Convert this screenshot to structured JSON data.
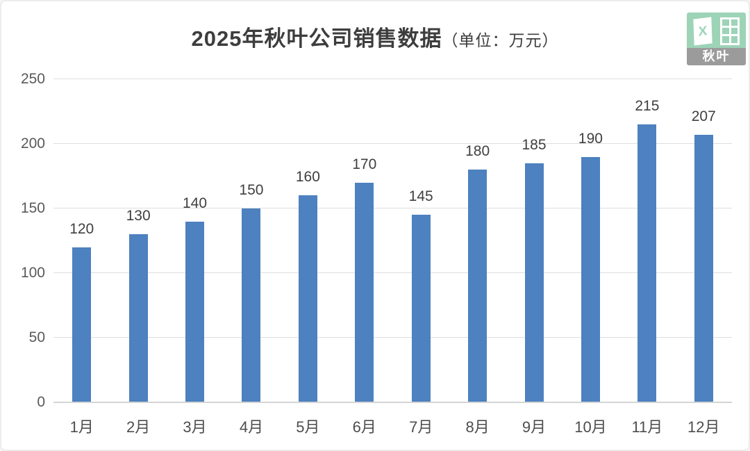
{
  "title": {
    "main": "2025年秋叶公司销售数据",
    "unit": "（单位：万元）"
  },
  "logo": {
    "brand": "秋叶",
    "icon": "excel-icon",
    "x_glyph": "X",
    "green": "#9dd3b7",
    "gray": "#9b9b9b"
  },
  "chart_data": {
    "type": "bar",
    "title": "2025年秋叶公司销售数据（单位：万元）",
    "categories": [
      "1月",
      "2月",
      "3月",
      "4月",
      "5月",
      "6月",
      "7月",
      "8月",
      "9月",
      "10月",
      "11月",
      "12月"
    ],
    "values": [
      120,
      130,
      140,
      150,
      160,
      170,
      145,
      180,
      185,
      190,
      215,
      207
    ],
    "xlabel": "",
    "ylabel": "",
    "ylim": [
      0,
      250
    ],
    "yticks": [
      0,
      50,
      100,
      150,
      200,
      250
    ],
    "grid": true,
    "legend": "none",
    "data_labels": true,
    "bar_color": "#4d81bf",
    "gridline_color": "#dedede",
    "axis_label_color": "#595959",
    "data_label_color": "#3f3f3f"
  }
}
